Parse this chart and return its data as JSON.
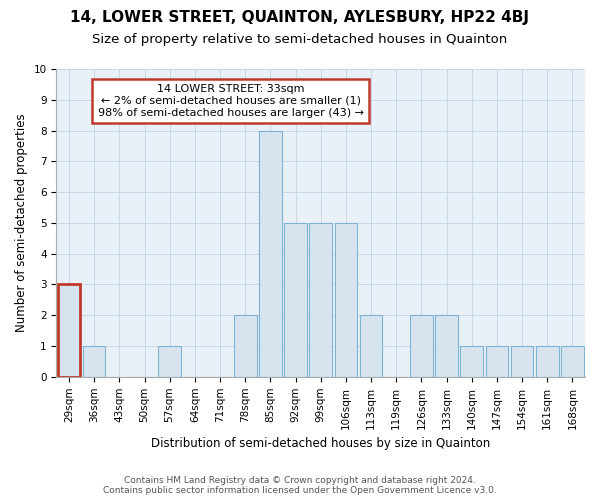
{
  "title": "14, LOWER STREET, QUAINTON, AYLESBURY, HP22 4BJ",
  "subtitle": "Size of property relative to semi-detached houses in Quainton",
  "xlabel": "Distribution of semi-detached houses by size in Quainton",
  "ylabel": "Number of semi-detached properties",
  "categories": [
    "29sqm",
    "36sqm",
    "43sqm",
    "50sqm",
    "57sqm",
    "64sqm",
    "71sqm",
    "78sqm",
    "85sqm",
    "92sqm",
    "99sqm",
    "106sqm",
    "113sqm",
    "119sqm",
    "126sqm",
    "133sqm",
    "140sqm",
    "147sqm",
    "154sqm",
    "161sqm",
    "168sqm"
  ],
  "values": [
    3,
    1,
    0,
    0,
    1,
    0,
    0,
    2,
    8,
    5,
    5,
    5,
    2,
    0,
    2,
    2,
    1,
    1,
    1,
    1,
    1
  ],
  "bar_color": "#d6e4f0",
  "bar_edge_color": "#7fb3d3",
  "highlight_bar_index": 0,
  "highlight_edge_color": "#c0392b",
  "annotation_box_text": "14 LOWER STREET: 33sqm\n← 2% of semi-detached houses are smaller (1)\n98% of semi-detached houses are larger (43) →",
  "annotation_box_color": "#ffffff",
  "annotation_box_edge_color": "#c0392b",
  "grid_color": "#c8d8e8",
  "background_color": "#ffffff",
  "plot_bg_color": "#e8f0f8",
  "ylim": [
    0,
    10
  ],
  "yticks": [
    0,
    1,
    2,
    3,
    4,
    5,
    6,
    7,
    8,
    9,
    10
  ],
  "footer_line1": "Contains HM Land Registry data © Crown copyright and database right 2024.",
  "footer_line2": "Contains public sector information licensed under the Open Government Licence v3.0.",
  "title_fontsize": 11,
  "subtitle_fontsize": 9.5,
  "annotation_fontsize": 8,
  "axis_label_fontsize": 8.5,
  "tick_fontsize": 7.5,
  "footer_fontsize": 6.5
}
